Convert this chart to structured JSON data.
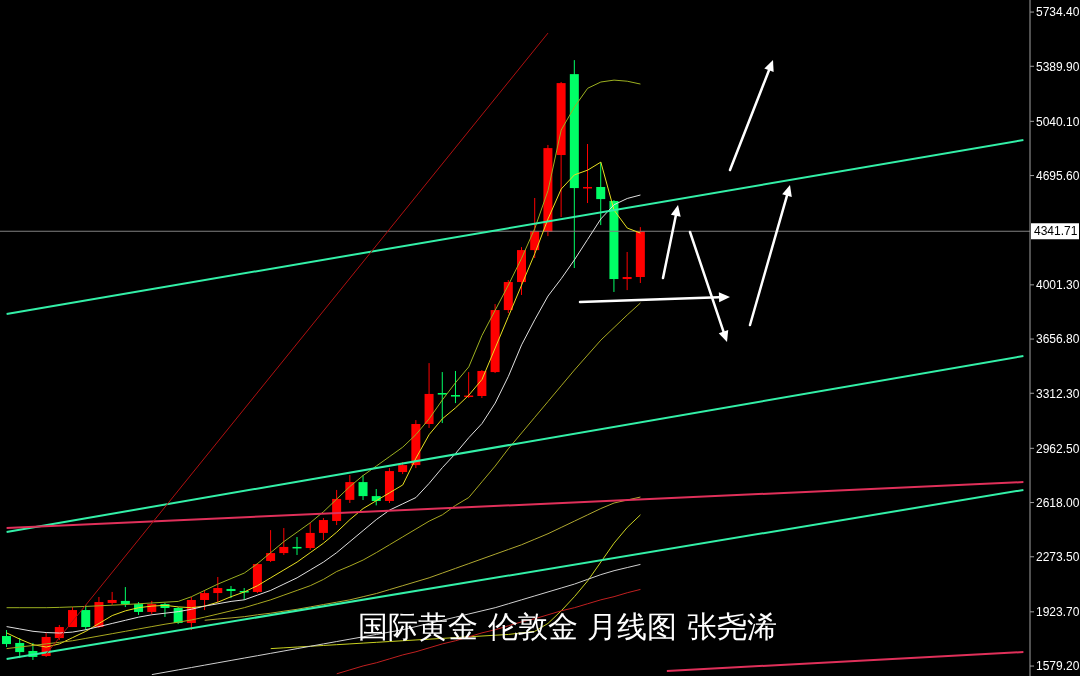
{
  "chart_data": {
    "type": "candlestick",
    "title": "国际黄金 伦敦金 月线图 张尧浠",
    "categories": [
      null,
      null,
      null,
      null,
      null,
      null,
      null,
      null,
      null,
      null,
      null,
      null,
      null,
      null,
      null,
      null,
      null,
      null,
      null,
      null,
      null,
      null,
      null,
      null,
      null,
      null,
      null,
      null,
      null,
      null,
      null,
      null,
      null,
      null,
      null,
      null,
      null,
      null,
      null,
      null,
      null,
      null,
      null,
      null,
      null,
      null,
      null,
      null,
      null,
      null,
      null,
      null,
      null,
      null,
      null,
      null,
      null,
      null,
      null,
      null,
      null,
      null,
      null,
      null,
      null,
      null,
      null,
      null,
      null,
      null,
      null,
      null,
      null,
      null,
      null,
      null,
      null,
      null
    ],
    "ohlc": [
      [
        1770,
        1808,
        1700,
        1719
      ],
      [
        1726,
        1757,
        1630,
        1668
      ],
      [
        1675,
        1726,
        1618,
        1637
      ],
      [
        1643,
        1789,
        1637,
        1764
      ],
      [
        1757,
        1840,
        1745,
        1827
      ],
      [
        1827,
        1954,
        1827,
        1935
      ],
      [
        1935,
        1967,
        1808,
        1827
      ],
      [
        1827,
        2018,
        1821,
        1986
      ],
      [
        1980,
        2050,
        1967,
        1999
      ],
      [
        1993,
        2081,
        1954,
        1973
      ],
      [
        1973,
        1986,
        1904,
        1923
      ],
      [
        1923,
        1993,
        1910,
        1973
      ],
      [
        1973,
        1980,
        1891,
        1948
      ],
      [
        1948,
        1954,
        1846,
        1853
      ],
      [
        1853,
        2018,
        1808,
        1999
      ],
      [
        1999,
        2062,
        1935,
        2043
      ],
      [
        2043,
        2145,
        1986,
        2075
      ],
      [
        2069,
        2088,
        2011,
        2056
      ],
      [
        2056,
        2075,
        1999,
        2050
      ],
      [
        2050,
        2234,
        2043,
        2227
      ],
      [
        2247,
        2443,
        2240,
        2297
      ],
      [
        2297,
        2456,
        2285,
        2336
      ],
      [
        2336,
        2399,
        2285,
        2330
      ],
      [
        2329,
        2488,
        2317,
        2425
      ],
      [
        2425,
        2520,
        2380,
        2507
      ],
      [
        2501,
        2698,
        2475,
        2641
      ],
      [
        2635,
        2793,
        2615,
        2748
      ],
      [
        2748,
        2793,
        2634,
        2659
      ],
      [
        2659,
        2704,
        2600,
        2628
      ],
      [
        2628,
        2837,
        2615,
        2818
      ],
      [
        2812,
        2875,
        2799,
        2856
      ],
      [
        2856,
        3142,
        2837,
        3117
      ],
      [
        3117,
        3504,
        3092,
        3308
      ],
      [
        3314,
        3447,
        3123,
        3304
      ],
      [
        3301,
        3454,
        3250,
        3295
      ],
      [
        3292,
        3447,
        3282,
        3298
      ],
      [
        3295,
        3460,
        3282,
        3454
      ],
      [
        3447,
        3879,
        3441,
        3841
      ],
      [
        3841,
        4032,
        3822,
        4019
      ],
      [
        4019,
        4241,
        3937,
        4222
      ],
      [
        4222,
        4553,
        4172,
        4343
      ],
      [
        4337,
        4890,
        4311,
        4870
      ],
      [
        4826,
        5290,
        4432,
        5283
      ],
      [
        5340,
        5429,
        4108,
        4616
      ],
      [
        4616,
        4896,
        4521,
        4623
      ],
      [
        4623,
        4781,
        4381,
        4546
      ],
      [
        4534,
        4540,
        3956,
        4038
      ],
      [
        4038,
        4210,
        3968,
        4051
      ],
      [
        4051,
        4368,
        4013,
        4342
      ],
      null,
      null,
      null,
      null,
      null,
      null,
      null,
      null,
      null,
      null,
      null,
      null,
      null,
      null,
      null,
      null,
      null,
      null,
      null,
      null,
      null,
      null,
      null,
      null,
      null,
      null,
      null,
      null,
      null
    ],
    "colors": [
      "#00ff66",
      "#00ff66",
      "#00ff66",
      "#ff0000",
      "#ff0000",
      "#ff0000",
      "#00ff66",
      "#ff0000",
      "#ff0000",
      "#00ff66",
      "#00ff66",
      "#ff0000",
      "#00ff66",
      "#00ff66",
      "#ff0000",
      "#ff0000",
      "#ff0000",
      "#00ff66",
      "#00ff66",
      "#ff0000",
      "#ff0000",
      "#ff0000",
      "#00ff66",
      "#ff0000",
      "#ff0000",
      "#ff0000",
      "#ff0000",
      "#00ff66",
      "#00ff66",
      "#ff0000",
      "#ff0000",
      "#ff0000",
      "#ff0000",
      "#00ff66",
      "#00ff66",
      "#ff0000",
      "#ff0000",
      "#ff0000",
      "#ff0000",
      "#ff0000",
      "#ff0000",
      "#ff0000",
      "#ff0000",
      "#00ff66",
      "#ff0000",
      "#00ff66",
      "#00ff66",
      "#ff0000",
      "#ff0000",
      null,
      null,
      null,
      null,
      null,
      null,
      null,
      null,
      null,
      null,
      null,
      null,
      null,
      null,
      null,
      null,
      null,
      null,
      null,
      null,
      null,
      null,
      null,
      null,
      null,
      null,
      null,
      null,
      null
    ],
    "series": [
      {
        "type": "line",
        "color": "#e8e020",
        "values": [
          1790,
          1750,
          1715,
          1700,
          1720,
          1760,
          1800,
          1850,
          1900,
          1930,
          1950,
          1960,
          1965,
          1955,
          1950,
          1960,
          1985,
          2020,
          2050,
          2090,
          2140,
          2190,
          2240,
          2300,
          2360,
          2430,
          2510,
          2580,
          2630,
          2680,
          2730,
          2900,
          3050,
          3150,
          3220,
          3300,
          3400,
          3600,
          3800,
          4000,
          4200,
          4420,
          4610,
          4700,
          4730,
          4781,
          4476,
          4362,
          4330,
          null,
          null,
          null,
          null,
          null,
          null,
          null,
          null,
          null,
          null,
          null,
          null,
          null,
          null,
          null,
          null,
          null,
          null,
          null,
          null,
          null,
          null,
          null,
          null,
          null,
          null,
          null,
          null,
          null
        ]
      },
      {
        "type": "line",
        "color": "#e0e0e0",
        "values": [
          1830,
          1815,
          1800,
          1792,
          1789,
          1795,
          1810,
          1830,
          1850,
          1870,
          1890,
          1905,
          1915,
          1925,
          1940,
          1960,
          1975,
          1990,
          2000,
          2030,
          2060,
          2100,
          2140,
          2190,
          2240,
          2300,
          2370,
          2440,
          2510,
          2570,
          2610,
          2650,
          2740,
          2840,
          2930,
          3030,
          3120,
          3250,
          3420,
          3620,
          3780,
          3930,
          4040,
          4160,
          4290,
          4420,
          4510,
          4550,
          4572,
          null,
          null,
          null,
          null,
          null,
          null,
          null,
          null,
          null,
          null,
          null,
          null,
          null,
          null,
          null,
          null,
          null,
          null,
          null,
          null,
          null,
          null,
          null,
          null,
          null,
          null,
          null,
          null,
          null
        ]
      },
      {
        "type": "line",
        "color": "#a8a820",
        "values": [
          1690,
          1700,
          1710,
          1720,
          1730,
          1740,
          1755,
          1770,
          1785,
          1800,
          1815,
          1830,
          1845,
          1858,
          1872,
          1890,
          1910,
          1930,
          1950,
          1975,
          2000,
          2030,
          2060,
          2090,
          2130,
          2180,
          2215,
          2253,
          2300,
          2350,
          2400,
          2450,
          2500,
          2540,
          2600,
          2650,
          2750,
          2850,
          2960,
          3060,
          3160,
          3260,
          3360,
          3460,
          3555,
          3650,
          3730,
          3810,
          3886,
          null,
          null,
          null,
          null,
          null,
          null,
          null,
          null,
          null,
          null,
          null,
          null,
          null,
          null,
          null,
          null,
          null,
          null,
          null,
          null,
          null,
          null,
          null,
          null,
          null,
          null,
          null,
          null,
          null
        ]
      },
      {
        "type": "line",
        "color": "#9cb020",
        "values": [
          1950,
          1950,
          1950,
          1950,
          1952,
          1955,
          1958,
          1962,
          1966,
          1970,
          1975,
          1980,
          1985,
          1990,
          2020,
          2060,
          2100,
          2135,
          2170,
          2230,
          2300,
          2370,
          2430,
          2490,
          2560,
          2640,
          2720,
          2790,
          2850,
          2910,
          2970,
          3050,
          3150,
          3270,
          3380,
          3480,
          3680,
          3840,
          4000,
          4170,
          4360,
          4600,
          4985,
          5131,
          5250,
          5290,
          5302,
          5295,
          5277,
          null,
          null,
          null,
          null,
          null,
          null,
          null,
          null,
          null,
          null,
          null,
          null,
          null,
          null,
          null,
          null,
          null,
          null,
          null,
          null,
          null,
          null,
          null,
          null,
          null,
          null,
          null,
          null,
          null
        ]
      },
      {
        "type": "line",
        "color": "#b0a830",
        "values": [
          null,
          null,
          null,
          null,
          null,
          null,
          null,
          null,
          null,
          null,
          null,
          null,
          null,
          null,
          null,
          1870,
          1878,
          1885,
          1893,
          1905,
          1915,
          1928,
          1940,
          1955,
          1970,
          1985,
          2000,
          2020,
          2040,
          2065,
          2090,
          2115,
          2140,
          2170,
          2200,
          2230,
          2260,
          2290,
          2320,
          2350,
          2385,
          2420,
          2460,
          2500,
          2540,
          2580,
          2615,
          null,
          2653,
          null,
          null,
          null,
          null,
          null,
          null,
          null,
          null,
          null,
          null,
          null,
          null,
          null,
          null,
          null,
          null,
          null,
          null,
          null,
          null,
          null,
          null,
          null,
          null,
          null,
          null,
          null,
          null,
          null
        ]
      },
      {
        "type": "line",
        "color": "#c8d020",
        "values": [
          null,
          null,
          null,
          null,
          null,
          null,
          null,
          null,
          null,
          null,
          null,
          null,
          null,
          null,
          null,
          null,
          null,
          null,
          null,
          null,
          1690,
          1695,
          1700,
          1705,
          1710,
          1715,
          1720,
          1725,
          1730,
          1735,
          1740,
          1745,
          1750,
          1755,
          1760,
          1765,
          1770,
          1775,
          1780,
          1790,
          1800,
          1850,
          1930,
          2020,
          2120,
          2240,
          2360,
          2460,
          2540,
          null,
          null,
          null,
          null,
          null,
          null,
          null,
          null,
          null,
          null,
          null,
          null,
          null,
          null,
          null,
          null,
          null,
          null,
          null,
          null,
          null,
          null,
          null,
          null,
          null,
          null,
          null,
          null,
          null
        ]
      },
      {
        "type": "line",
        "color": "#d0d0d0",
        "values": [
          null,
          null,
          null,
          null,
          null,
          null,
          null,
          null,
          null,
          null,
          null,
          1525,
          1540,
          1555,
          1570,
          1585,
          1600,
          1615,
          1630,
          1645,
          1660,
          1675,
          1690,
          1705,
          1720,
          1735,
          1750,
          1765,
          1780,
          1795,
          1810,
          1830,
          1850,
          1870,
          1890,
          1910,
          1930,
          1950,
          1975,
          2000,
          2025,
          2050,
          2075,
          2100,
          2130,
          2160,
          2185,
          2205,
          2225,
          null,
          null,
          null,
          null,
          null,
          null,
          null,
          null,
          null,
          null,
          null,
          null,
          null,
          null,
          null,
          null,
          null,
          null,
          null,
          null,
          null,
          null,
          null,
          null,
          null,
          null,
          null,
          null,
          null
        ]
      },
      {
        "type": "line",
        "color": "#c02020",
        "values": [
          null,
          null,
          null,
          null,
          null,
          null,
          null,
          null,
          null,
          null,
          null,
          null,
          null,
          null,
          null,
          null,
          null,
          null,
          null,
          null,
          null,
          null,
          null,
          null,
          null,
          1530,
          1555,
          1580,
          1600,
          1625,
          1650,
          1670,
          1695,
          1720,
          1740,
          1765,
          1790,
          1810,
          1835,
          1860,
          1880,
          1905,
          1930,
          1950,
          1975,
          2000,
          2020,
          2045,
          2066,
          null,
          null,
          null,
          null,
          null,
          null,
          null,
          null,
          null,
          null,
          null,
          null,
          null,
          null,
          null,
          null,
          null,
          null,
          null,
          null,
          null,
          null,
          null,
          null,
          null,
          null,
          null,
          null,
          null
        ]
      },
      {
        "type": "line",
        "color": "#33f0a8",
        "values": [
          3816,
          null,
          null,
          null,
          null,
          null,
          null,
          null,
          null,
          null,
          null,
          null,
          null,
          null,
          null,
          null,
          null,
          null,
          null,
          null,
          null,
          null,
          null,
          null,
          null,
          null,
          null,
          null,
          null,
          null,
          null,
          null,
          null,
          null,
          null,
          null,
          null,
          null,
          null,
          null,
          null,
          null,
          null,
          null,
          null,
          null,
          null,
          null,
          null,
          null,
          null,
          null,
          null,
          null,
          null,
          null,
          null,
          null,
          null,
          null,
          null,
          null,
          null,
          null,
          null,
          null,
          null,
          null,
          null,
          null,
          null,
          null,
          null,
          null,
          null,
          null,
          null,
          4921
        ]
      },
      {
        "type": "line",
        "color": "#33f0a8",
        "values": [
          2431,
          null,
          null,
          null,
          null,
          null,
          null,
          null,
          null,
          null,
          null,
          null,
          null,
          null,
          null,
          null,
          null,
          null,
          null,
          null,
          null,
          null,
          null,
          null,
          null,
          null,
          null,
          null,
          null,
          null,
          null,
          null,
          null,
          null,
          null,
          null,
          null,
          null,
          null,
          null,
          null,
          null,
          null,
          null,
          null,
          null,
          null,
          null,
          null,
          null,
          null,
          null,
          null,
          null,
          null,
          null,
          null,
          null,
          null,
          null,
          null,
          null,
          null,
          null,
          null,
          null,
          null,
          null,
          null,
          null,
          null,
          null,
          null,
          null,
          null,
          null,
          null,
          3549
        ]
      },
      {
        "type": "line",
        "color": "#33f0a8",
        "values": [
          1624,
          null,
          null,
          null,
          null,
          null,
          null,
          null,
          null,
          null,
          null,
          null,
          null,
          null,
          null,
          null,
          null,
          null,
          null,
          null,
          null,
          null,
          null,
          null,
          null,
          null,
          null,
          null,
          null,
          null,
          null,
          null,
          null,
          null,
          null,
          null,
          null,
          null,
          null,
          null,
          null,
          null,
          null,
          null,
          null,
          null,
          null,
          null,
          null,
          null,
          null,
          null,
          null,
          null,
          null,
          null,
          null,
          null,
          null,
          null,
          null,
          null,
          null,
          null,
          null,
          null,
          null,
          null,
          null,
          null,
          null,
          null,
          null,
          null,
          null,
          null,
          null,
          2698
        ]
      },
      {
        "type": "line",
        "color": "#e0305a",
        "values": [
          2456,
          null,
          null,
          null,
          null,
          null,
          null,
          null,
          null,
          null,
          null,
          null,
          null,
          null,
          null,
          null,
          null,
          null,
          null,
          null,
          null,
          null,
          null,
          null,
          null,
          null,
          null,
          null,
          null,
          null,
          null,
          null,
          null,
          null,
          null,
          null,
          null,
          null,
          null,
          null,
          null,
          null,
          null,
          null,
          null,
          null,
          null,
          null,
          null,
          null,
          null,
          null,
          null,
          null,
          null,
          null,
          null,
          null,
          null,
          null,
          null,
          null,
          null,
          null,
          null,
          null,
          null,
          null,
          null,
          null,
          null,
          null,
          null,
          null,
          null,
          null,
          null,
          2748
        ]
      },
      {
        "type": "line",
        "color": "#e0305a",
        "values": [
          null,
          null,
          null,
          null,
          null,
          null,
          null,
          null,
          null,
          null,
          null,
          null,
          null,
          null,
          null,
          null,
          null,
          null,
          null,
          null,
          null,
          null,
          null,
          null,
          null,
          null,
          null,
          null,
          null,
          null,
          null,
          null,
          null,
          null,
          null,
          null,
          null,
          null,
          null,
          null,
          null,
          null,
          null,
          null,
          null,
          null,
          null,
          null,
          null,
          null,
          1548,
          null,
          null,
          null,
          null,
          null,
          null,
          null,
          null,
          null,
          null,
          null,
          null,
          null,
          null,
          null,
          null,
          null,
          null,
          null,
          null,
          null,
          null,
          null,
          null,
          null,
          null,
          1668
        ]
      },
      {
        "type": "line",
        "color": "#b01010",
        "values": [
          null,
          null,
          null,
          1656,
          null,
          null,
          null,
          null,
          null,
          null,
          null,
          null,
          null,
          null,
          null,
          null,
          null,
          null,
          null,
          null,
          null,
          null,
          null,
          null,
          null,
          null,
          null,
          null,
          null,
          null,
          null,
          null,
          null,
          null,
          null,
          null,
          null,
          null,
          null,
          null,
          null,
          5601,
          null,
          null,
          null,
          null,
          null,
          null,
          null,
          null,
          null,
          null,
          null,
          null,
          null,
          null,
          null,
          null,
          null,
          null,
          null,
          null,
          null,
          null,
          null,
          null,
          null,
          null,
          null,
          null,
          null,
          null,
          null,
          null,
          null,
          null,
          null,
          null
        ]
      }
    ],
    "ylim": [
      1516,
      5811
    ],
    "yticks": [
      {
        "value": 1579.2,
        "label": "1579.20"
      },
      {
        "value": 1923.7,
        "label": "1923.70"
      },
      {
        "value": 2273.5,
        "label": "2273.50"
      },
      {
        "value": 2618,
        "label": "2618.00"
      },
      {
        "value": 2962.5,
        "label": "2962.50"
      },
      {
        "value": 3312.3,
        "label": "3312.30"
      },
      {
        "value": 3656.8,
        "label": "3656.80"
      },
      {
        "value": 4001.3,
        "label": "4001.30"
      },
      {
        "value": 4695.6,
        "label": "4695.60"
      },
      {
        "value": 5040.1,
        "label": "5040.10"
      },
      {
        "value": 5389.9,
        "label": "5389.90"
      },
      {
        "value": 5734.4,
        "label": "5734.40"
      }
    ],
    "ref_lines": [
      {
        "axis": "y",
        "value": 4341.71,
        "label": "4341.71",
        "color": "#808080"
      }
    ],
    "tick_labels": "y",
    "marker": "none"
  }
}
